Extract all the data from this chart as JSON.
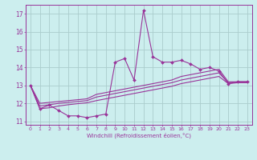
{
  "xlabel": "Windchill (Refroidissement éolien,°C)",
  "bg_color": "#cceeee",
  "grid_color": "#aacccc",
  "line_color": "#993399",
  "x": [
    0,
    1,
    2,
    3,
    4,
    5,
    6,
    7,
    8,
    9,
    10,
    11,
    12,
    13,
    14,
    15,
    16,
    17,
    18,
    19,
    20,
    21,
    22,
    23
  ],
  "y_main": [
    13.0,
    11.7,
    11.9,
    11.6,
    11.3,
    11.3,
    11.2,
    11.3,
    11.4,
    14.3,
    14.5,
    13.3,
    17.2,
    14.6,
    14.3,
    14.3,
    14.4,
    14.2,
    13.9,
    14.0,
    13.8,
    13.1,
    13.2,
    13.2
  ],
  "y_upper": [
    13.0,
    12.0,
    12.05,
    12.1,
    12.15,
    12.2,
    12.25,
    12.5,
    12.6,
    12.7,
    12.8,
    12.9,
    13.0,
    13.1,
    13.2,
    13.3,
    13.5,
    13.6,
    13.7,
    13.8,
    13.9,
    13.2,
    13.2,
    13.2
  ],
  "y_middle": [
    13.0,
    11.85,
    11.92,
    12.0,
    12.05,
    12.1,
    12.15,
    12.35,
    12.45,
    12.55,
    12.65,
    12.75,
    12.85,
    12.95,
    13.05,
    13.15,
    13.3,
    13.4,
    13.5,
    13.6,
    13.7,
    13.15,
    13.2,
    13.2
  ],
  "y_lower": [
    13.0,
    11.7,
    11.75,
    11.85,
    11.92,
    11.98,
    12.03,
    12.15,
    12.25,
    12.35,
    12.45,
    12.55,
    12.65,
    12.75,
    12.85,
    12.95,
    13.1,
    13.2,
    13.3,
    13.4,
    13.5,
    13.1,
    13.15,
    13.15
  ],
  "ylim": [
    10.8,
    17.5
  ],
  "yticks": [
    11,
    12,
    13,
    14,
    15,
    16,
    17
  ],
  "xlim": [
    -0.5,
    23.5
  ]
}
